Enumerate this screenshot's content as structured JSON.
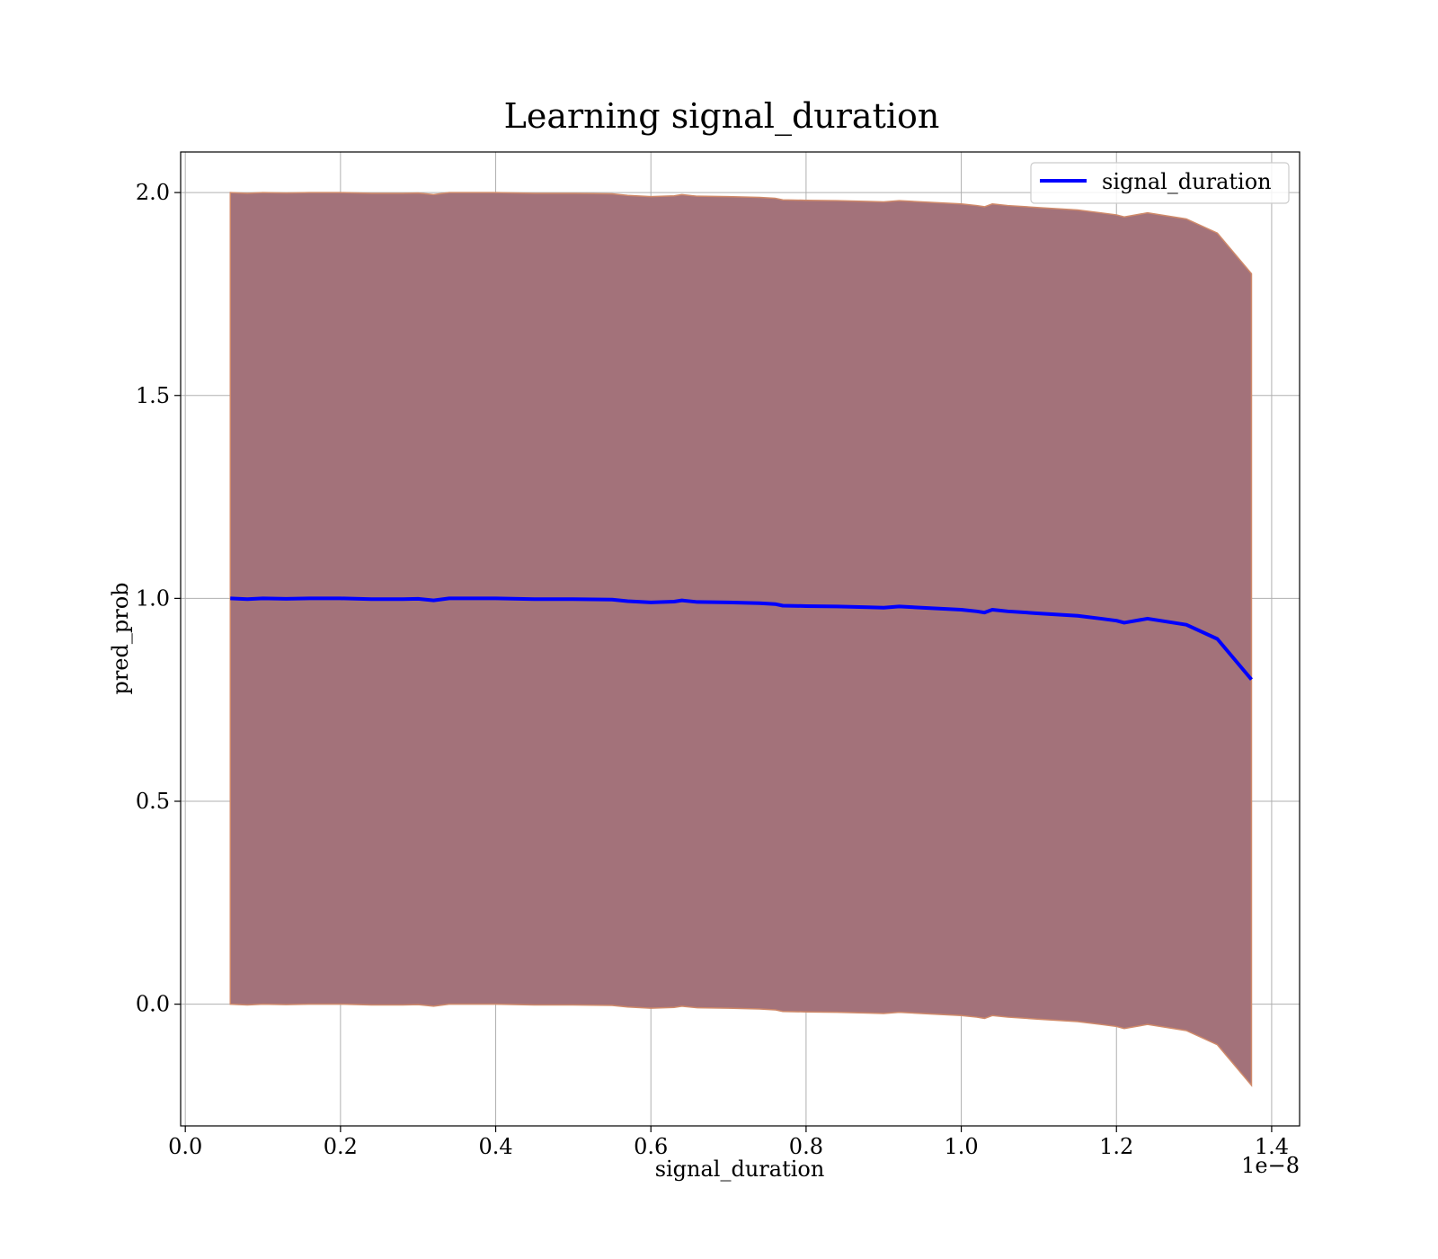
{
  "chart_data": {
    "type": "line",
    "title": "Learning signal_duration",
    "xlabel": "signal_duration",
    "ylabel": "pred_prob",
    "x_offset_label": "1e−8",
    "xlim": [
      -0.006,
      1.436
    ],
    "ylim": [
      -0.3,
      2.1
    ],
    "x_ticks": [
      0.0,
      0.2,
      0.4,
      0.6,
      0.8,
      1.0,
      1.2,
      1.4
    ],
    "x_tick_labels": [
      "0.0",
      "0.2",
      "0.4",
      "0.6",
      "0.8",
      "1.0",
      "1.2",
      "1.4"
    ],
    "y_ticks": [
      0.0,
      0.5,
      1.0,
      1.5,
      2.0
    ],
    "y_tick_labels": [
      "0.0",
      "0.5",
      "1.0",
      "1.5",
      "2.0"
    ],
    "grid": true,
    "legend_position": "top-right",
    "series": [
      {
        "name": "signal_duration",
        "color": "#0000ff",
        "x": [
          0.058,
          0.08,
          0.1,
          0.13,
          0.16,
          0.2,
          0.24,
          0.28,
          0.3,
          0.32,
          0.34,
          0.4,
          0.45,
          0.5,
          0.55,
          0.57,
          0.6,
          0.63,
          0.64,
          0.66,
          0.7,
          0.74,
          0.76,
          0.77,
          0.8,
          0.84,
          0.88,
          0.9,
          0.92,
          0.96,
          1.0,
          1.02,
          1.03,
          1.04,
          1.06,
          1.1,
          1.15,
          1.18,
          1.2,
          1.21,
          1.24,
          1.29,
          1.33,
          1.374
        ],
        "y": [
          1.0,
          0.998,
          1.0,
          0.999,
          1.0,
          1.0,
          0.998,
          0.998,
          0.999,
          0.995,
          1.0,
          1.0,
          0.998,
          0.998,
          0.997,
          0.993,
          0.99,
          0.992,
          0.995,
          0.991,
          0.99,
          0.988,
          0.986,
          0.982,
          0.981,
          0.98,
          0.978,
          0.977,
          0.98,
          0.976,
          0.972,
          0.968,
          0.965,
          0.972,
          0.968,
          0.963,
          0.957,
          0.95,
          0.945,
          0.94,
          0.95,
          0.935,
          0.9,
          0.8
        ]
      }
    ],
    "band": {
      "fill_color": "#a3727a",
      "edge_color": "#d08a6a",
      "upper": [
        2.0,
        1.998,
        2.0,
        1.999,
        2.0,
        2.0,
        1.998,
        1.998,
        1.999,
        1.995,
        2.0,
        2.0,
        1.998,
        1.998,
        1.997,
        1.993,
        1.99,
        1.992,
        1.995,
        1.991,
        1.99,
        1.988,
        1.986,
        1.982,
        1.981,
        1.98,
        1.978,
        1.977,
        1.98,
        1.976,
        1.972,
        1.968,
        1.965,
        1.972,
        1.968,
        1.963,
        1.957,
        1.95,
        1.945,
        1.94,
        1.95,
        1.935,
        1.9,
        1.8
      ],
      "lower": [
        0.0,
        -0.002,
        0.0,
        -0.001,
        0.0,
        0.0,
        -0.002,
        -0.002,
        -0.001,
        -0.005,
        0.0,
        0.0,
        -0.002,
        -0.002,
        -0.003,
        -0.007,
        -0.01,
        -0.008,
        -0.005,
        -0.009,
        -0.01,
        -0.012,
        -0.014,
        -0.018,
        -0.019,
        -0.02,
        -0.022,
        -0.023,
        -0.02,
        -0.024,
        -0.028,
        -0.032,
        -0.035,
        -0.028,
        -0.032,
        -0.037,
        -0.043,
        -0.05,
        -0.055,
        -0.06,
        -0.05,
        -0.065,
        -0.1,
        -0.2
      ]
    }
  }
}
